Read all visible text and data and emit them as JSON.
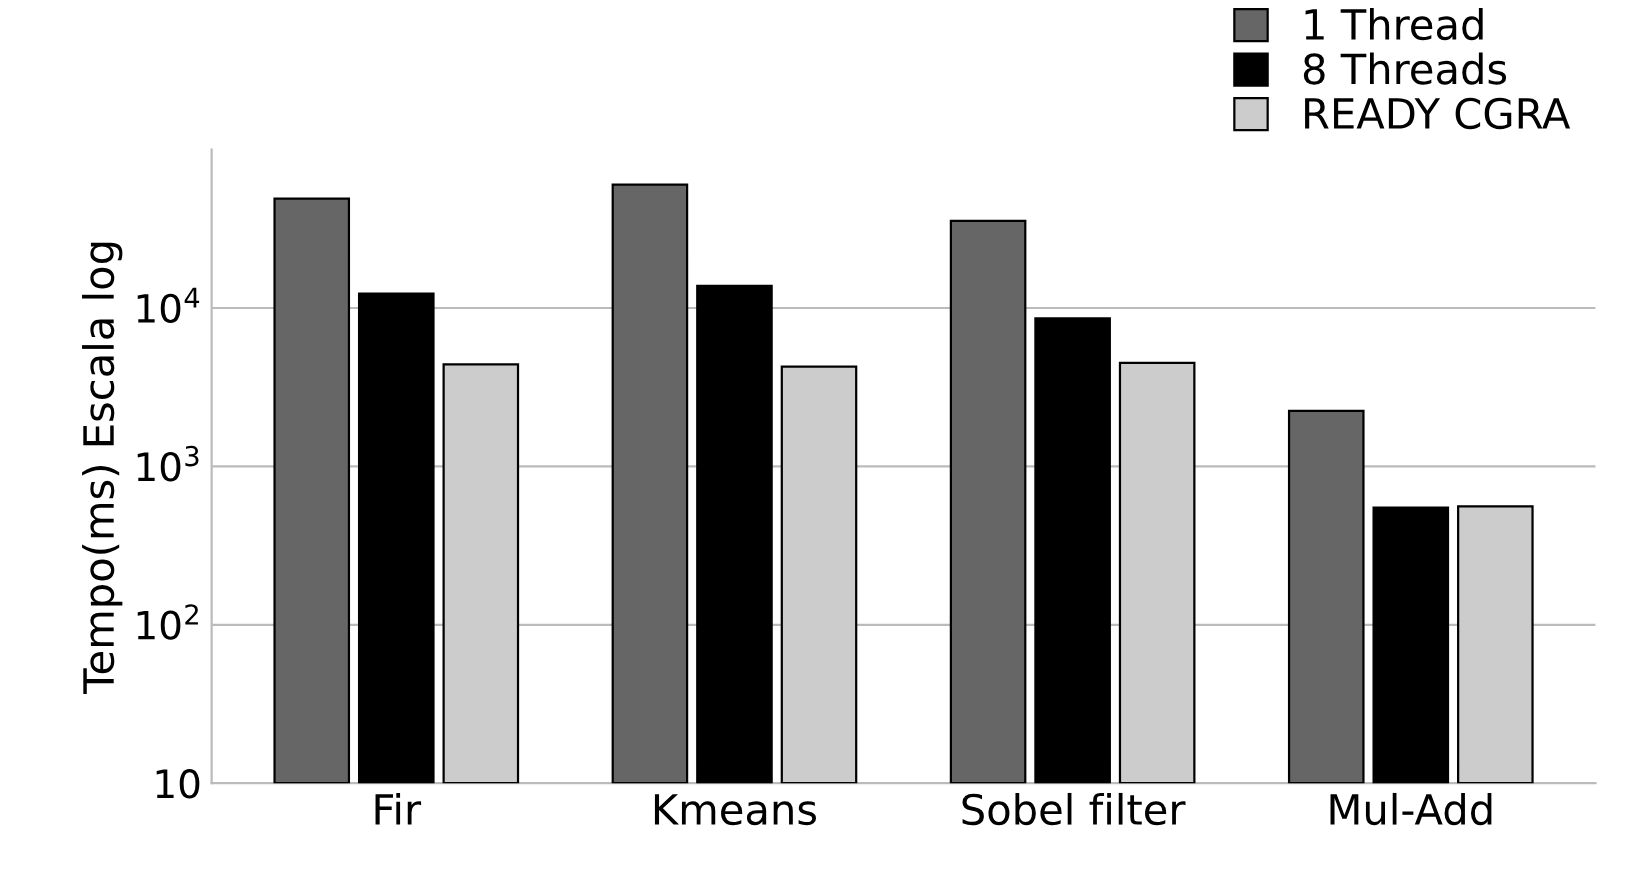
{
  "chart_data": {
    "type": "bar",
    "ylabel": "Tempo(ms) Escala log",
    "categories": [
      "Fir",
      "Kmeans",
      "Sobel filter",
      "Mul-Add"
    ],
    "series": [
      {
        "name": "1 Thread",
        "color": "#666666",
        "values": [
          49000,
          60000,
          35500,
          2230
        ]
      },
      {
        "name": "8 Threads",
        "color": "#000000",
        "values": [
          12300,
          13800,
          8600,
          540
        ]
      },
      {
        "name": "READY CGRA",
        "color": "#cccccc",
        "values": [
          4400,
          4250,
          4500,
          550
        ]
      }
    ],
    "log": true,
    "ylim": [
      10,
      100000
    ],
    "yticks": [
      10,
      {
        "value": 100,
        "label": "10$^{2}$"
      },
      {
        "value": 1000,
        "label": "10$^{3}$"
      },
      {
        "value": 10000,
        "label": "10$^{4}$"
      }
    ],
    "grid": "y",
    "legend": "top right"
  }
}
